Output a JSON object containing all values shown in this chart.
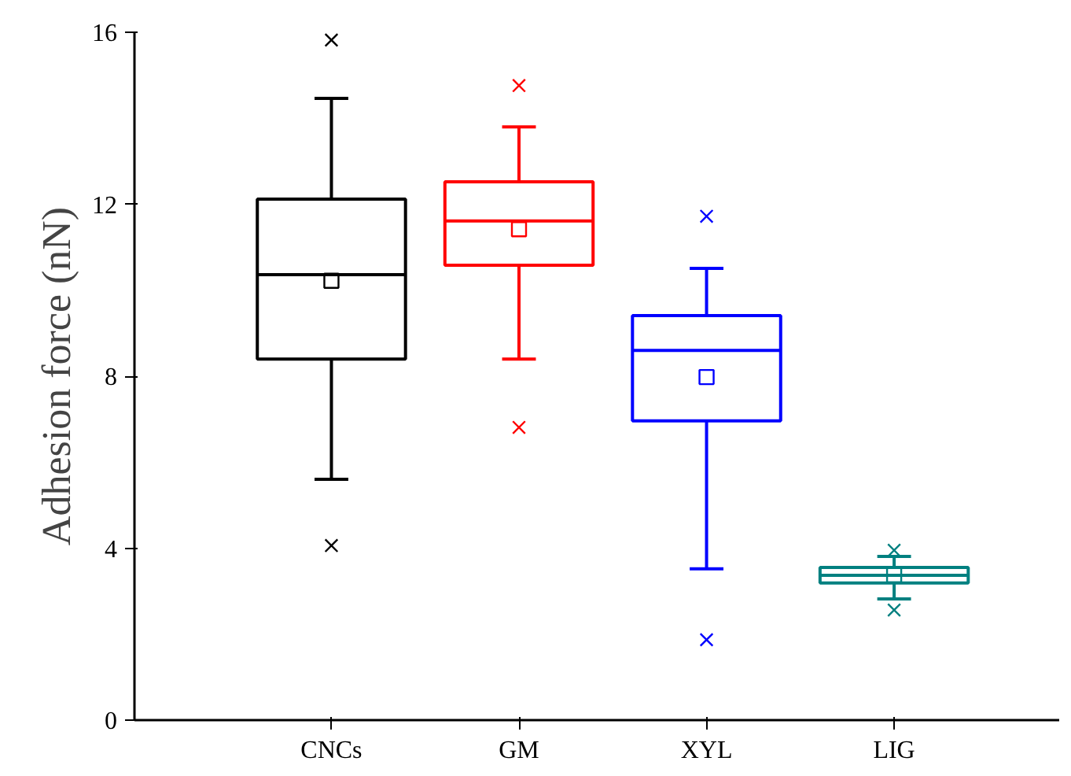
{
  "chart_data": {
    "type": "box",
    "ylabel": "Adhesion force (nN)",
    "categories": [
      "CNCs",
      "GM",
      "XYL",
      "LIG"
    ],
    "colors": [
      "#000000",
      "#ff0000",
      "#0000ff",
      "#008080"
    ],
    "boxes": [
      {
        "low": 5.6,
        "q1": 8.4,
        "median": 10.36,
        "q3": 12.12,
        "high": 14.46,
        "mean": 10.22,
        "outliers": [
          15.82,
          4.06
        ]
      },
      {
        "low": 8.4,
        "q1": 10.58,
        "median": 11.61,
        "q3": 12.52,
        "high": 13.8,
        "mean": 11.42,
        "outliers": [
          14.76,
          6.81
        ]
      },
      {
        "low": 3.52,
        "q1": 6.96,
        "median": 8.6,
        "q3": 9.41,
        "high": 10.51,
        "mean": 7.98,
        "outliers": [
          11.72,
          1.87
        ]
      },
      {
        "low": 2.82,
        "q1": 3.19,
        "median": 3.37,
        "q3": 3.55,
        "high": 3.81,
        "mean": 3.37,
        "outliers": [
          3.95,
          2.56
        ]
      }
    ],
    "ylim": [
      0,
      16
    ],
    "yticks": [
      0,
      4,
      8,
      12,
      16
    ],
    "grid": false
  }
}
